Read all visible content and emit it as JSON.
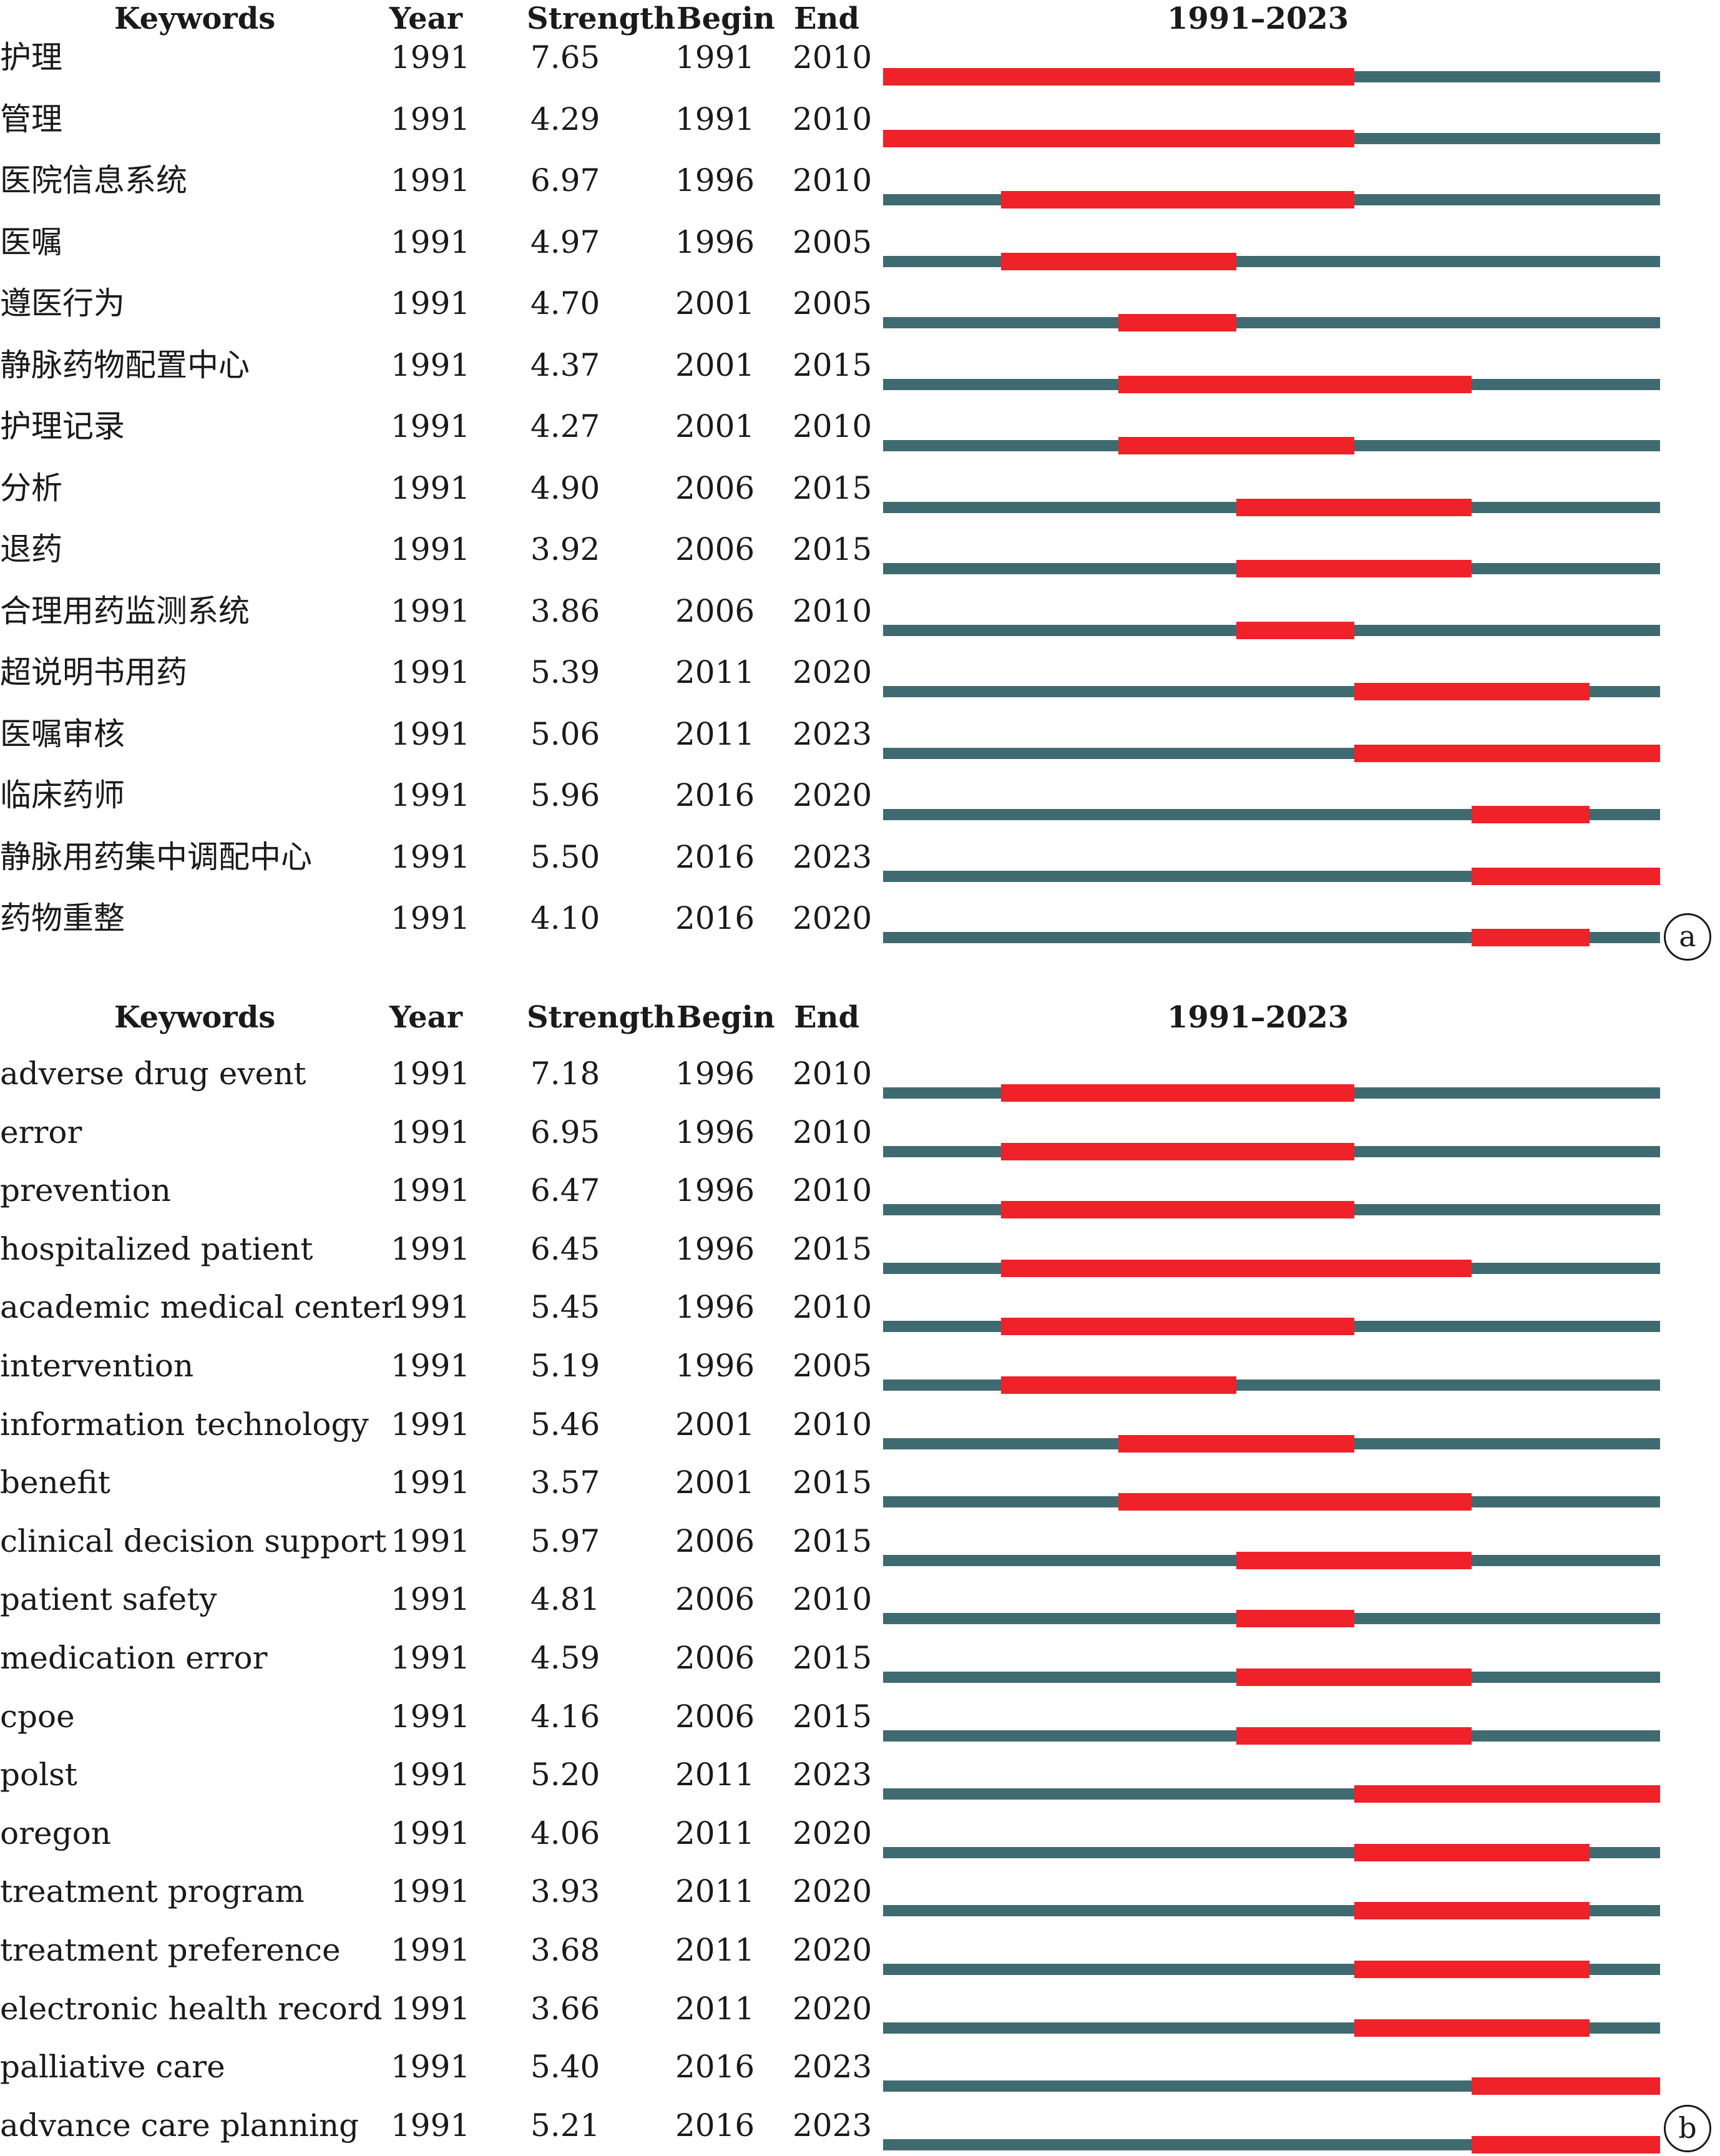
{
  "chart_data": [
    {
      "type": "table",
      "panel_label": "a",
      "headers": {
        "keywords": "Keywords",
        "year": "Year",
        "strength": "Strength",
        "begin": "Begin",
        "end": "End",
        "range": "1991–2023"
      },
      "range": [
        1991,
        2023
      ],
      "rows": [
        {
          "keyword": "护理",
          "year": "1991",
          "strength": "7.65",
          "begin": "1991",
          "end": "2010"
        },
        {
          "keyword": "管理",
          "year": "1991",
          "strength": "4.29",
          "begin": "1991",
          "end": "2010"
        },
        {
          "keyword": "医院信息系统",
          "year": "1991",
          "strength": "6.97",
          "begin": "1996",
          "end": "2010"
        },
        {
          "keyword": "医嘱",
          "year": "1991",
          "strength": "4.97",
          "begin": "1996",
          "end": "2005"
        },
        {
          "keyword": "遵医行为",
          "year": "1991",
          "strength": "4.70",
          "begin": "2001",
          "end": "2005"
        },
        {
          "keyword": "静脉药物配置中心",
          "year": "1991",
          "strength": "4.37",
          "begin": "2001",
          "end": "2015"
        },
        {
          "keyword": "护理记录",
          "year": "1991",
          "strength": "4.27",
          "begin": "2001",
          "end": "2010"
        },
        {
          "keyword": "分析",
          "year": "1991",
          "strength": "4.90",
          "begin": "2006",
          "end": "2015"
        },
        {
          "keyword": "退药",
          "year": "1991",
          "strength": "3.92",
          "begin": "2006",
          "end": "2015"
        },
        {
          "keyword": "合理用药监测系统",
          "year": "1991",
          "strength": "3.86",
          "begin": "2006",
          "end": "2010"
        },
        {
          "keyword": "超说明书用药",
          "year": "1991",
          "strength": "5.39",
          "begin": "2011",
          "end": "2020"
        },
        {
          "keyword": "医嘱审核",
          "year": "1991",
          "strength": "5.06",
          "begin": "2011",
          "end": "2023"
        },
        {
          "keyword": "临床药师",
          "year": "1991",
          "strength": "5.96",
          "begin": "2016",
          "end": "2020"
        },
        {
          "keyword": "静脉用药集中调配中心",
          "year": "1991",
          "strength": "5.50",
          "begin": "2016",
          "end": "2023"
        },
        {
          "keyword": "药物重整",
          "year": "1991",
          "strength": "4.10",
          "begin": "2016",
          "end": "2020"
        }
      ]
    },
    {
      "type": "table",
      "panel_label": "b",
      "headers": {
        "keywords": "Keywords",
        "year": "Year",
        "strength": "Strength",
        "begin": "Begin",
        "end": "End",
        "range": "1991–2023"
      },
      "range": [
        1991,
        2023
      ],
      "rows": [
        {
          "keyword": "adverse drug event",
          "year": "1991",
          "strength": "7.18",
          "begin": "1996",
          "end": "2010"
        },
        {
          "keyword": "error",
          "year": "1991",
          "strength": "6.95",
          "begin": "1996",
          "end": "2010"
        },
        {
          "keyword": "prevention",
          "year": "1991",
          "strength": "6.47",
          "begin": "1996",
          "end": "2010"
        },
        {
          "keyword": "hospitalized patient",
          "year": "1991",
          "strength": "6.45",
          "begin": "1996",
          "end": "2015"
        },
        {
          "keyword": "academic medical center",
          "year": "1991",
          "strength": "5.45",
          "begin": "1996",
          "end": "2010"
        },
        {
          "keyword": "intervention",
          "year": "1991",
          "strength": "5.19",
          "begin": "1996",
          "end": "2005"
        },
        {
          "keyword": "information technology",
          "year": "1991",
          "strength": "5.46",
          "begin": "2001",
          "end": "2010"
        },
        {
          "keyword": "benefit",
          "year": "1991",
          "strength": "3.57",
          "begin": "2001",
          "end": "2015"
        },
        {
          "keyword": "clinical decision support",
          "year": "1991",
          "strength": "5.97",
          "begin": "2006",
          "end": "2015"
        },
        {
          "keyword": "patient safety",
          "year": "1991",
          "strength": "4.81",
          "begin": "2006",
          "end": "2010"
        },
        {
          "keyword": "medication error",
          "year": "1991",
          "strength": "4.59",
          "begin": "2006",
          "end": "2015"
        },
        {
          "keyword": "cpoe",
          "year": "1991",
          "strength": "4.16",
          "begin": "2006",
          "end": "2015"
        },
        {
          "keyword": "polst",
          "year": "1991",
          "strength": "5.20",
          "begin": "2011",
          "end": "2023"
        },
        {
          "keyword": "oregon",
          "year": "1991",
          "strength": "4.06",
          "begin": "2011",
          "end": "2020"
        },
        {
          "keyword": "treatment program",
          "year": "1991",
          "strength": "3.93",
          "begin": "2011",
          "end": "2020"
        },
        {
          "keyword": "treatment preference",
          "year": "1991",
          "strength": "3.68",
          "begin": "2011",
          "end": "2020"
        },
        {
          "keyword": "electronic health record",
          "year": "1991",
          "strength": "3.66",
          "begin": "2011",
          "end": "2020"
        },
        {
          "keyword": "palliative care",
          "year": "1991",
          "strength": "5.40",
          "begin": "2016",
          "end": "2023"
        },
        {
          "keyword": "advance care planning",
          "year": "1991",
          "strength": "5.21",
          "begin": "2016",
          "end": "2023"
        }
      ]
    }
  ],
  "colors": {
    "burst": "#ee2228",
    "track": "#3f6b70"
  }
}
